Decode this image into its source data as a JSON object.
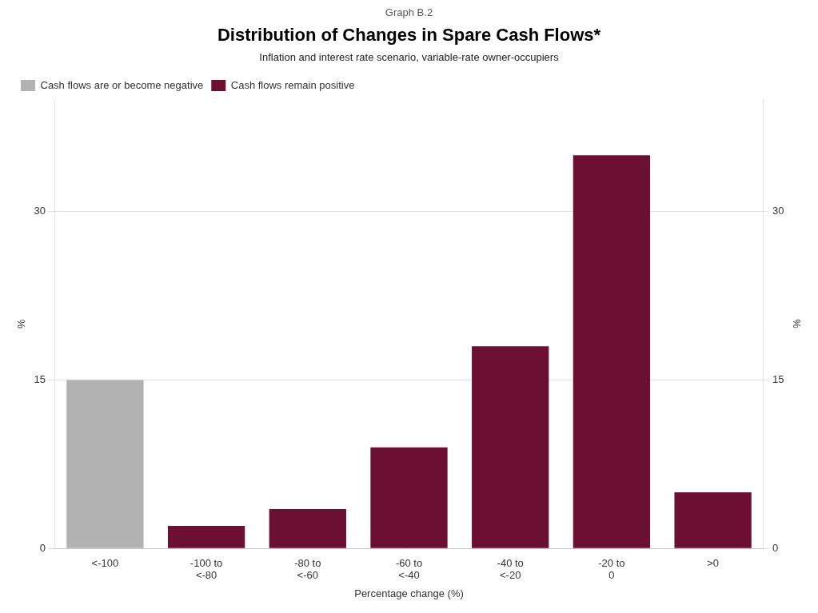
{
  "chart_data": {
    "type": "bar",
    "graph_label": "Graph B.2",
    "title": "Distribution of Changes in Spare Cash Flows*",
    "subtitle": "Inflation and interest rate scenario, variable-rate owner-occupiers",
    "xlabel": "Percentage change (%)",
    "ylabel": "%",
    "y2label": "%",
    "categories": [
      "<-100",
      "-100 to\n<-80",
      "-80 to\n<-60",
      "-60 to\n<-40",
      "-40 to\n<-20",
      "-20 to\n0",
      ">0"
    ],
    "series": [
      {
        "name": "Cash flows are or become negative",
        "color": "#b2b2b2",
        "values": [
          15,
          null,
          null,
          null,
          null,
          null,
          null
        ]
      },
      {
        "name": "Cash flows remain positive",
        "color": "#6b1030",
        "values": [
          null,
          2,
          3.5,
          9,
          18,
          35,
          5
        ]
      }
    ],
    "ylim": [
      0,
      40
    ],
    "yticks": [
      0,
      15,
      30
    ],
    "y2lim": [
      0,
      40
    ],
    "y2ticks": [
      0,
      15,
      30
    ],
    "grid": true,
    "legend": "upper left"
  }
}
